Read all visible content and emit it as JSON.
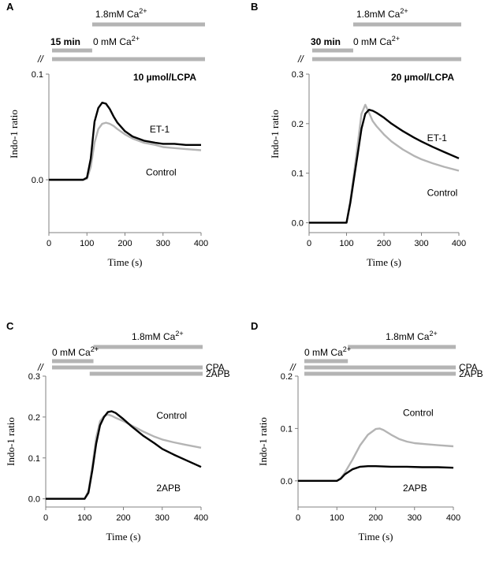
{
  "figure": {
    "colors": {
      "black_trace": "#000000",
      "gray_trace": "#b4b4b4",
      "bar": "#b4b4b4",
      "axis": "#808080"
    }
  },
  "chart_data": [
    {
      "panel": "A",
      "type": "line",
      "xlabel": "Time (s)",
      "ylabel": "Indo-1 ratio",
      "xlim": [
        0,
        400
      ],
      "ylim": [
        -0.05,
        0.1
      ],
      "xticks": [
        0,
        100,
        200,
        300,
        400
      ],
      "yticks": [
        0.0,
        0.1
      ],
      "ytick_labels": [
        "0.0",
        "0.1"
      ],
      "conditions": {
        "duration": "15 min",
        "drug": "10 µmol/LCPA"
      },
      "protocol_bars": [
        {
          "label": "1.8mM Ca",
          "superscript": "2+",
          "start": 105,
          "end": 400,
          "row": 0
        },
        {
          "label": "0 mM Ca",
          "superscript": "2+",
          "start": 0,
          "end": 105,
          "row": 1
        },
        {
          "label": "",
          "superscript": "",
          "start": 0,
          "end": 400,
          "row": 2
        }
      ],
      "series": [
        {
          "name": "ET-1",
          "color": "black",
          "x": [
            0,
            90,
            100,
            110,
            120,
            130,
            140,
            150,
            160,
            170,
            180,
            200,
            220,
            250,
            280,
            300,
            330,
            360,
            400
          ],
          "y": [
            0.0,
            0.0,
            0.002,
            0.02,
            0.055,
            0.068,
            0.073,
            0.072,
            0.067,
            0.06,
            0.054,
            0.046,
            0.041,
            0.037,
            0.035,
            0.034,
            0.034,
            0.033,
            0.033
          ]
        },
        {
          "name": "Control",
          "color": "gray",
          "x": [
            0,
            90,
            100,
            110,
            120,
            130,
            140,
            150,
            160,
            170,
            180,
            200,
            220,
            250,
            280,
            300,
            330,
            360,
            400
          ],
          "y": [
            0.0,
            0.0,
            0.001,
            0.012,
            0.035,
            0.048,
            0.053,
            0.054,
            0.053,
            0.051,
            0.048,
            0.043,
            0.039,
            0.035,
            0.033,
            0.031,
            0.03,
            0.029,
            0.028
          ]
        }
      ]
    },
    {
      "panel": "B",
      "type": "line",
      "xlabel": "Time (s)",
      "ylabel": "Indo-1 ratio",
      "xlim": [
        0,
        400
      ],
      "ylim": [
        -0.02,
        0.3
      ],
      "xticks": [
        0,
        100,
        200,
        300,
        400
      ],
      "yticks": [
        0.0,
        0.1,
        0.2,
        0.3
      ],
      "ytick_labels": [
        "0.0",
        "0.1",
        "0.2",
        "0.3"
      ],
      "conditions": {
        "duration": "30 min",
        "drug": "20 µmol/LCPA"
      },
      "protocol_bars": [
        {
          "label": "1.8mM Ca",
          "superscript": "2+",
          "start": 110,
          "end": 400,
          "row": 0
        },
        {
          "label": "0 mM Ca",
          "superscript": "2+",
          "start": 0,
          "end": 110,
          "row": 1
        },
        {
          "label": "",
          "superscript": "",
          "start": 0,
          "end": 400,
          "row": 2
        }
      ],
      "series": [
        {
          "name": "ET-1",
          "color": "black",
          "x": [
            0,
            100,
            110,
            120,
            130,
            140,
            150,
            160,
            170,
            180,
            200,
            220,
            250,
            280,
            300,
            330,
            360,
            400
          ],
          "y": [
            0.0,
            0.0,
            0.04,
            0.09,
            0.14,
            0.19,
            0.22,
            0.228,
            0.226,
            0.222,
            0.212,
            0.2,
            0.185,
            0.172,
            0.164,
            0.153,
            0.143,
            0.13
          ]
        },
        {
          "name": "Control",
          "color": "gray",
          "x": [
            0,
            100,
            110,
            120,
            130,
            140,
            150,
            160,
            170,
            180,
            200,
            220,
            250,
            280,
            300,
            330,
            360,
            400
          ],
          "y": [
            0.0,
            0.0,
            0.045,
            0.1,
            0.16,
            0.22,
            0.238,
            0.222,
            0.205,
            0.195,
            0.178,
            0.164,
            0.148,
            0.135,
            0.128,
            0.12,
            0.113,
            0.105
          ]
        }
      ]
    },
    {
      "panel": "C",
      "type": "line",
      "xlabel": "Time (s)",
      "ylabel": "Indo-1 ratio",
      "xlim": [
        0,
        400
      ],
      "ylim": [
        -0.02,
        0.3
      ],
      "xticks": [
        0,
        100,
        200,
        300,
        400
      ],
      "yticks": [
        0.0,
        0.1,
        0.2,
        0.3
      ],
      "ytick_labels": [
        "0.0",
        "0.1",
        "0.2",
        "0.3"
      ],
      "protocol_bars": [
        {
          "label": "1.8mM Ca",
          "superscript": "2+",
          "start": 110,
          "end": 400,
          "row": 0
        },
        {
          "label": "0 mM Ca",
          "superscript": "2+",
          "start": 0,
          "end": 110,
          "row": 1
        },
        {
          "label": "CPA",
          "superscript": "",
          "start": 0,
          "end": 400,
          "row": 2
        },
        {
          "label": "2APB",
          "superscript": "",
          "start": 100,
          "end": 400,
          "row": 3
        }
      ],
      "series": [
        {
          "name": "Control",
          "color": "gray",
          "x": [
            0,
            100,
            110,
            120,
            130,
            140,
            150,
            160,
            170,
            180,
            200,
            220,
            250,
            280,
            300,
            330,
            360,
            400
          ],
          "y": [
            0.0,
            0.0,
            0.02,
            0.08,
            0.15,
            0.19,
            0.202,
            0.206,
            0.203,
            0.198,
            0.19,
            0.18,
            0.165,
            0.152,
            0.145,
            0.138,
            0.132,
            0.125
          ]
        },
        {
          "name": "2APB",
          "color": "black",
          "x": [
            0,
            100,
            110,
            120,
            130,
            140,
            150,
            160,
            170,
            180,
            200,
            220,
            250,
            280,
            300,
            330,
            360,
            400
          ],
          "y": [
            0.0,
            0.0,
            0.015,
            0.07,
            0.135,
            0.18,
            0.2,
            0.212,
            0.214,
            0.21,
            0.195,
            0.178,
            0.155,
            0.136,
            0.122,
            0.108,
            0.095,
            0.078
          ]
        }
      ]
    },
    {
      "panel": "D",
      "type": "line",
      "xlabel": "Time (s)",
      "ylabel": "Indo-1 ratio",
      "xlim": [
        0,
        400
      ],
      "ylim": [
        -0.05,
        0.2
      ],
      "xticks": [
        0,
        100,
        200,
        300,
        400
      ],
      "yticks": [
        0.0,
        0.1,
        0.2
      ],
      "ytick_labels": [
        "0.0",
        "0.1",
        "0.2"
      ],
      "protocol_bars": [
        {
          "label": "1.8mM Ca",
          "superscript": "2+",
          "start": 115,
          "end": 400,
          "row": 0
        },
        {
          "label": "0 mM Ca",
          "superscript": "2+",
          "start": 0,
          "end": 115,
          "row": 1
        },
        {
          "label": "CPA",
          "superscript": "",
          "start": 0,
          "end": 400,
          "row": 2
        },
        {
          "label": "2APB",
          "superscript": "",
          "start": 0,
          "end": 400,
          "row": 3
        }
      ],
      "series": [
        {
          "name": "Control",
          "color": "gray",
          "x": [
            0,
            100,
            110,
            120,
            140,
            160,
            180,
            200,
            210,
            220,
            240,
            260,
            280,
            300,
            330,
            360,
            400
          ],
          "y": [
            0.0,
            0.0,
            0.005,
            0.015,
            0.04,
            0.068,
            0.088,
            0.099,
            0.1,
            0.097,
            0.088,
            0.08,
            0.075,
            0.072,
            0.07,
            0.068,
            0.066
          ]
        },
        {
          "name": "2APB",
          "color": "black",
          "x": [
            0,
            100,
            110,
            120,
            140,
            160,
            180,
            200,
            240,
            280,
            320,
            360,
            400
          ],
          "y": [
            0.0,
            0.0,
            0.004,
            0.012,
            0.022,
            0.027,
            0.028,
            0.028,
            0.027,
            0.027,
            0.026,
            0.026,
            0.025
          ]
        }
      ]
    }
  ]
}
